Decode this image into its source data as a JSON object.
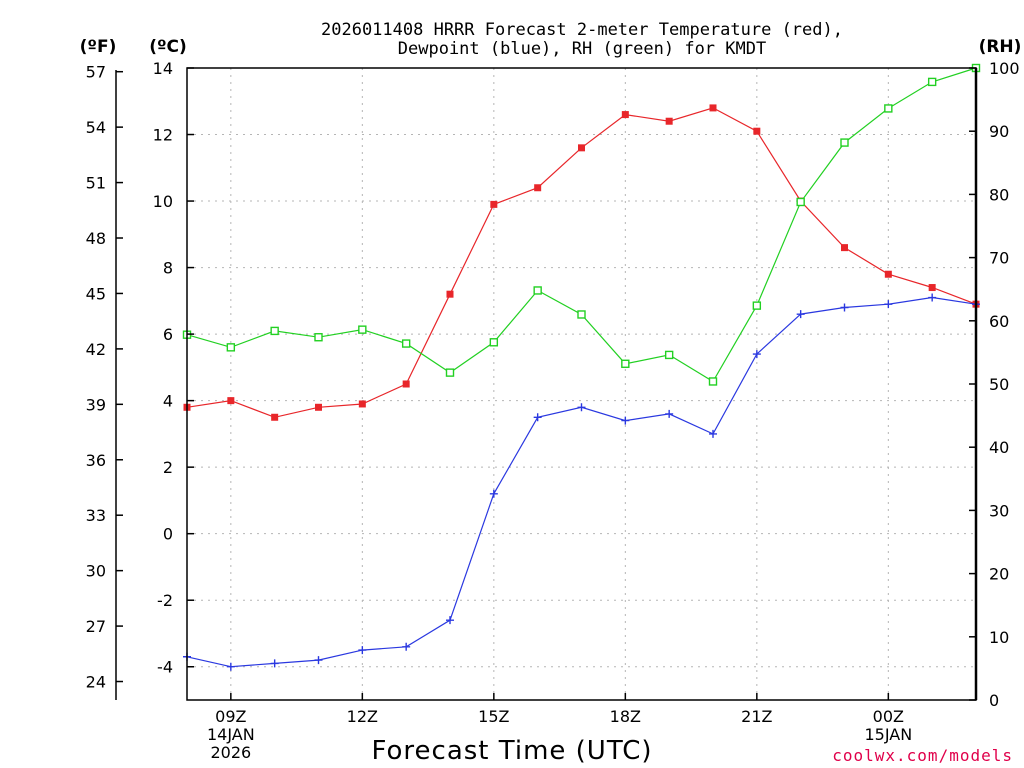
{
  "chart_data": {
    "type": "line",
    "title": [
      "2026011408 HRRR Forecast 2-meter Temperature (red),",
      "Dewpoint (blue), RH (green) for KMDT"
    ],
    "xlabel": "Forecast Time (UTC)",
    "credit": "coolwx.com/models",
    "units": {
      "fahrenheit": "(ºF)",
      "celsius": "(ºC)",
      "rh": "(RH)"
    },
    "hours": [
      8,
      9,
      10,
      11,
      12,
      13,
      14,
      15,
      16,
      17,
      18,
      19,
      20,
      21,
      22,
      23,
      24,
      25,
      26
    ],
    "x_range": [
      8,
      26
    ],
    "y_celsius_range": [
      -5,
      14
    ],
    "y_rh_range": [
      0,
      100
    ],
    "y_celsius_ticks": [
      "-4",
      "-2",
      "0",
      "2",
      "4",
      "6",
      "8",
      "10",
      "12",
      "14"
    ],
    "y_fahrenheit_ticks": [
      "24",
      "27",
      "30",
      "33",
      "36",
      "39",
      "42",
      "45",
      "48",
      "51",
      "54",
      "57"
    ],
    "y_rh_ticks": [
      "0",
      "10",
      "20",
      "30",
      "40",
      "50",
      "60",
      "70",
      "80",
      "90",
      "100"
    ],
    "x_ticks": [
      {
        "hour": 9,
        "lines": [
          "09Z",
          "14JAN",
          "2026"
        ]
      },
      {
        "hour": 12,
        "lines": [
          "12Z"
        ]
      },
      {
        "hour": 15,
        "lines": [
          "15Z"
        ]
      },
      {
        "hour": 18,
        "lines": [
          "18Z"
        ]
      },
      {
        "hour": 21,
        "lines": [
          "21Z"
        ]
      },
      {
        "hour": 24,
        "lines": [
          "00Z",
          "15JAN"
        ]
      }
    ],
    "series": [
      {
        "name": "Temperature",
        "color": "#e8262a",
        "axis": "celsius",
        "marker": "filled-square",
        "values": [
          3.8,
          4.0,
          3.5,
          3.8,
          3.9,
          4.5,
          7.2,
          9.9,
          10.4,
          11.6,
          12.6,
          12.4,
          12.8,
          12.1,
          10.0,
          8.6,
          7.8,
          7.4,
          6.9
        ]
      },
      {
        "name": "Dewpoint",
        "color": "#2a38e0",
        "axis": "celsius",
        "marker": "plus",
        "values": [
          -3.7,
          -4.0,
          -3.9,
          -3.8,
          -3.5,
          -3.4,
          -2.6,
          1.2,
          3.5,
          3.8,
          3.4,
          3.6,
          3.0,
          5.4,
          6.6,
          6.8,
          6.9,
          7.1,
          6.9
        ]
      },
      {
        "name": "RH",
        "color": "#22d022",
        "axis": "rh",
        "marker": "open-square",
        "values": [
          57.8,
          55.8,
          58.4,
          57.4,
          58.6,
          56.4,
          51.8,
          56.6,
          64.8,
          61.0,
          53.2,
          54.6,
          50.4,
          62.4,
          78.8,
          88.2,
          93.6,
          97.8,
          100.0
        ]
      }
    ]
  }
}
